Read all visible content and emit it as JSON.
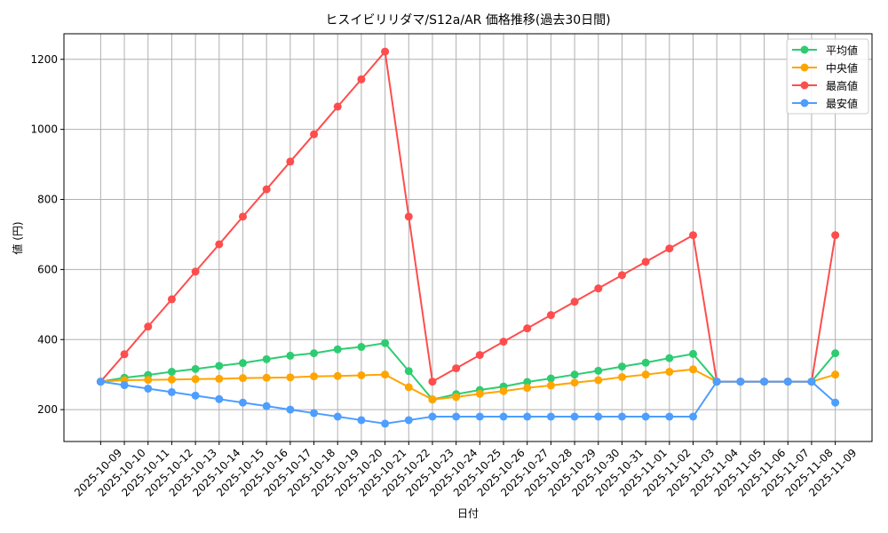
{
  "chart_data": {
    "type": "line",
    "title": "ヒスイビリリダマ/S12a/AR 価格推移(過去30日間)",
    "xlabel": "日付",
    "ylabel": "値 (円)",
    "ylim": [
      109,
      1273
    ],
    "yticks": [
      200,
      400,
      600,
      800,
      1000,
      1200
    ],
    "grid": true,
    "legend_position": "top-right",
    "x": [
      "2025-10-09",
      "2025-10-10",
      "2025-10-11",
      "2025-10-12",
      "2025-10-13",
      "2025-10-14",
      "2025-10-15",
      "2025-10-16",
      "2025-10-17",
      "2025-10-18",
      "2025-10-19",
      "2025-10-20",
      "2025-10-21",
      "2025-10-22",
      "2025-10-23",
      "2025-10-24",
      "2025-10-25",
      "2025-10-26",
      "2025-10-27",
      "2025-10-28",
      "2025-10-29",
      "2025-10-30",
      "2025-10-31",
      "2025-11-01",
      "2025-11-02",
      "2025-11-03",
      "2025-11-04",
      "2025-11-05",
      "2025-11-06",
      "2025-11-07",
      "2025-11-08",
      "2025-11-09"
    ],
    "series": [
      {
        "name": "平均値",
        "color": "#2ecc71",
        "values": [
          280,
          291,
          299,
          308,
          316,
          325,
          333,
          344,
          354,
          361,
          372,
          379,
          390,
          310,
          229,
          244,
          256,
          266,
          279,
          289,
          300,
          311,
          323,
          334,
          347,
          359,
          280,
          280,
          280,
          280,
          280,
          361
        ]
      },
      {
        "name": "中央値",
        "color": "#ffa500",
        "values": [
          280,
          284,
          285,
          286,
          287,
          288,
          290,
          291,
          292,
          295,
          296,
          298,
          300,
          264,
          229,
          236,
          245,
          253,
          262,
          269,
          277,
          284,
          293,
          300,
          308,
          315,
          280,
          280,
          280,
          280,
          280,
          300
        ]
      },
      {
        "name": "最高値",
        "color": "#ff4d4d",
        "values": [
          280,
          358,
          437,
          515,
          594,
          672,
          751,
          829,
          908,
          986,
          1065,
          1143,
          1222,
          751,
          280,
          318,
          356,
          394,
          432,
          470,
          508,
          546,
          584,
          622,
          660,
          698,
          280,
          280,
          280,
          280,
          280,
          698
        ]
      },
      {
        "name": "最安値",
        "color": "#4d9eff",
        "values": [
          280,
          270,
          260,
          250,
          240,
          230,
          220,
          210,
          200,
          190,
          180,
          170,
          160,
          170,
          180,
          180,
          180,
          180,
          180,
          180,
          180,
          180,
          180,
          180,
          180,
          180,
          280,
          280,
          280,
          280,
          280,
          220
        ]
      }
    ]
  }
}
